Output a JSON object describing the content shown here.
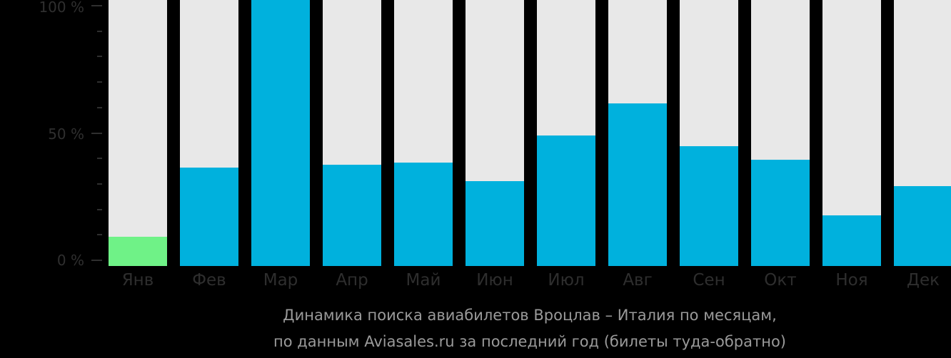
{
  "chart_data": {
    "type": "bar",
    "title": "Динамика поиска авиабилетов Вроцлав – Италия по месяцам, по данным Aviasales.ru за последний год (билеты туда-обратно)",
    "xlabel": "",
    "ylabel": "",
    "ylim": [
      0,
      100
    ],
    "y_ticks": [
      "0 %",
      "50 %",
      "100 %"
    ],
    "categories": [
      "Янв",
      "Фев",
      "Мар",
      "Апр",
      "Май",
      "Июн",
      "Июл",
      "Авг",
      "Сен",
      "Окт",
      "Ноя",
      "Дек"
    ],
    "values": [
      11,
      37,
      100,
      38,
      39,
      32,
      49,
      61,
      45,
      40,
      19,
      30
    ],
    "colors": {
      "bar": "#00b1dd",
      "min_bar": "#6ff287",
      "background_bar": "#e8e8e8"
    },
    "grid": false,
    "legend": null
  },
  "axis": {
    "y_labels": {
      "top": "100 %",
      "mid": "50 %",
      "bottom": "0 %"
    }
  },
  "caption": {
    "line1": "Динамика поиска авиабилетов Вроцлав – Италия по месяцам,",
    "line2": "по данным Aviasales.ru за последний год (билеты туда-обратно)"
  }
}
